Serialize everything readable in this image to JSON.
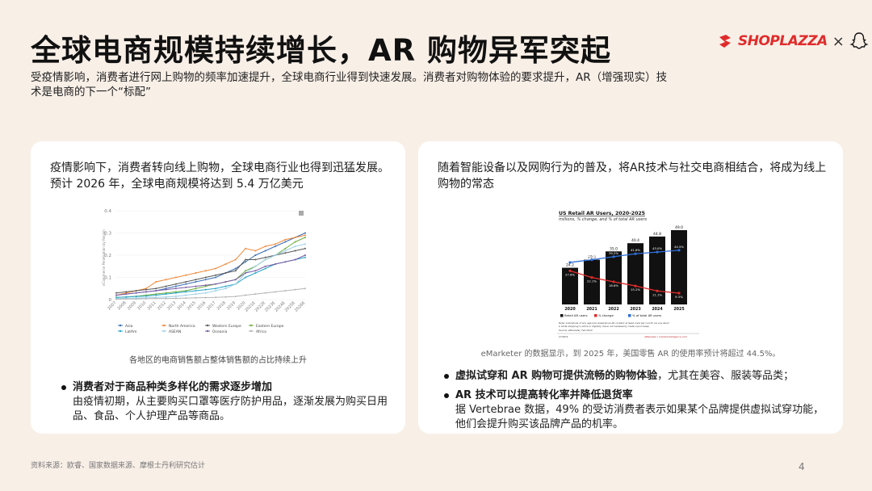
{
  "header": {
    "title": "全球电商规模持续增长，AR 购物异军突起",
    "subtitle": "受疫情影响，消费者进行网上购物的频率加速提升，全球电商行业得到快速发展。消费者对购物体验的要求提升，AR（增强现实）技术是电商的下一个“标配”",
    "logo_text": "SHOPLAZZA",
    "logo_separator": "×",
    "brand_color": "#e02b2b"
  },
  "left_card": {
    "heading": "疫情影响下，消费者转向线上购物，全球电商行业也得到迅猛发展。预计 2026 年，全球电商规模将达到 5.4 万亿美元",
    "caption": "各地区的电商销售额占整体销售额的占比持续上升",
    "bullets": [
      {
        "title": "消费者对于商品种类多样化的需求逐步增加",
        "body": "由疫情初期，从主要购买口罩等医疗防护用品，逐渐发展为购买日用品、食品、个人护理产品等商品。"
      }
    ]
  },
  "right_card": {
    "heading": "随着智能设备以及网购行为的普及，将AR技术与社交电商相结合，将成为线上购物的常态",
    "caption": "eMarketer 的数据显示，到 2025 年，美国零售 AR 的使用率预计将超过 44.5%。",
    "bullets": [
      {
        "title": "虚拟试穿和 AR 购物可提供流畅的购物体验",
        "body": "，尤其在美容、服装等品类；"
      },
      {
        "title": "AR 技术可以提高转化率并降低退货率",
        "body": "据 Vertebrae 数据，49% 的受访消费者表示如果某个品牌提供虚拟试穿功能，他们会提升购买该品牌产品的机率。"
      }
    ]
  },
  "footer": {
    "source": "资料来源：欧睿、国家数据来源、摩根士丹利研究估计",
    "page": "4"
  },
  "chart_data": [
    {
      "type": "line",
      "title": "",
      "ylabel": "eCommerce Penetration by Region",
      "ylim": [
        0,
        0.4
      ],
      "yticks": [
        "0",
        "0.1",
        "0.2",
        "0.3",
        "0.4"
      ],
      "x": [
        "2007",
        "2008",
        "2009",
        "2010",
        "2011",
        "2012",
        "2013",
        "2014",
        "2015",
        "2016",
        "2017",
        "2018",
        "2019",
        "2020",
        "2021E",
        "2022E",
        "2023E",
        "2024E",
        "2025E",
        "2026E"
      ],
      "series": [
        {
          "name": "Asia",
          "color": "#3b6fb6",
          "values": [
            0.02,
            0.025,
            0.03,
            0.035,
            0.04,
            0.05,
            0.06,
            0.07,
            0.08,
            0.09,
            0.1,
            0.12,
            0.14,
            0.17,
            0.2,
            0.22,
            0.24,
            0.26,
            0.28,
            0.3
          ]
        },
        {
          "name": "North America",
          "color": "#f08a3a",
          "values": [
            0.02,
            0.03,
            0.04,
            0.05,
            0.08,
            0.09,
            0.1,
            0.11,
            0.12,
            0.13,
            0.14,
            0.16,
            0.18,
            0.23,
            0.22,
            0.24,
            0.25,
            0.27,
            0.28,
            0.29
          ]
        },
        {
          "name": "Western Europe",
          "color": "#5a5a5a",
          "values": [
            0.03,
            0.035,
            0.04,
            0.045,
            0.05,
            0.06,
            0.07,
            0.08,
            0.09,
            0.1,
            0.11,
            0.12,
            0.13,
            0.18,
            0.18,
            0.19,
            0.2,
            0.21,
            0.22,
            0.23
          ]
        },
        {
          "name": "Eastern Europe",
          "color": "#6fae3f",
          "values": [
            0.01,
            0.012,
            0.015,
            0.02,
            0.025,
            0.03,
            0.035,
            0.04,
            0.05,
            0.06,
            0.07,
            0.08,
            0.09,
            0.13,
            0.15,
            0.18,
            0.2,
            0.23,
            0.26,
            0.28
          ]
        },
        {
          "name": "LatAm",
          "color": "#2aa7c9",
          "values": [
            0.01,
            0.012,
            0.014,
            0.016,
            0.02,
            0.025,
            0.03,
            0.035,
            0.04,
            0.045,
            0.05,
            0.06,
            0.07,
            0.1,
            0.12,
            0.14,
            0.16,
            0.17,
            0.18,
            0.19
          ]
        },
        {
          "name": "ASEAN",
          "color": "#9fd0e8",
          "values": [
            0.005,
            0.006,
            0.007,
            0.008,
            0.01,
            0.012,
            0.015,
            0.02,
            0.025,
            0.03,
            0.04,
            0.05,
            0.07,
            0.12,
            0.15,
            0.18,
            0.2,
            0.22,
            0.24,
            0.25
          ]
        },
        {
          "name": "Oceania",
          "color": "#7b5ea7",
          "values": [
            0.02,
            0.025,
            0.03,
            0.035,
            0.04,
            0.045,
            0.05,
            0.055,
            0.06,
            0.065,
            0.07,
            0.08,
            0.09,
            0.12,
            0.13,
            0.15,
            0.16,
            0.17,
            0.18,
            0.2
          ]
        },
        {
          "name": "Africa",
          "color": "#b5b5b5",
          "values": [
            0.002,
            0.003,
            0.003,
            0.004,
            0.005,
            0.005,
            0.006,
            0.007,
            0.008,
            0.009,
            0.01,
            0.012,
            0.014,
            0.02,
            0.025,
            0.03,
            0.035,
            0.04,
            0.045,
            0.05
          ]
        }
      ]
    },
    {
      "type": "bar",
      "title": "US Retail AR Users, 2020-2025",
      "subtitle": "millions, % change, and % of total AR users",
      "categories": [
        "2020",
        "2021",
        "2022",
        "2023",
        "2024",
        "2025"
      ],
      "ylim": [
        0,
        49
      ],
      "series": [
        {
          "name": "Retail AR users",
          "color": "#111111",
          "values": [
            24.2,
            29.5,
            35.0,
            40.4,
            44.8,
            49.0
          ],
          "labels": [
            "24.2",
            "29.5",
            "35.0",
            "40.4",
            "44.8",
            "49.0"
          ]
        },
        {
          "name": "% change",
          "color": "#e02b2b",
          "values": [
            27.6,
            22.1,
            18.6,
            15.2,
            11.1,
            9.3
          ],
          "labels": [
            "27.6%",
            "22.1%",
            "18.6%",
            "15.2%",
            "11.1%",
            "9.3%"
          ]
        },
        {
          "name": "% of total AR users",
          "color": "#2e6fd8",
          "values": [
            34.5,
            36.7,
            39.2,
            41.6,
            43.0,
            44.5
          ],
          "labels": [
            "34.5%",
            "36.7%",
            "39.2%",
            "41.6%",
            "43.0%",
            "44.5%"
          ]
        }
      ],
      "note": "Note: individuals of any age who experience AR content at least once per month via any device while shopping in-store or digitally (have not necessarily made a purchase)",
      "source": "Source: eMarketer, Feb 2022",
      "footer_left": "274674",
      "footer_right": "eMarketer | InsiderIntelligence.com"
    }
  ]
}
